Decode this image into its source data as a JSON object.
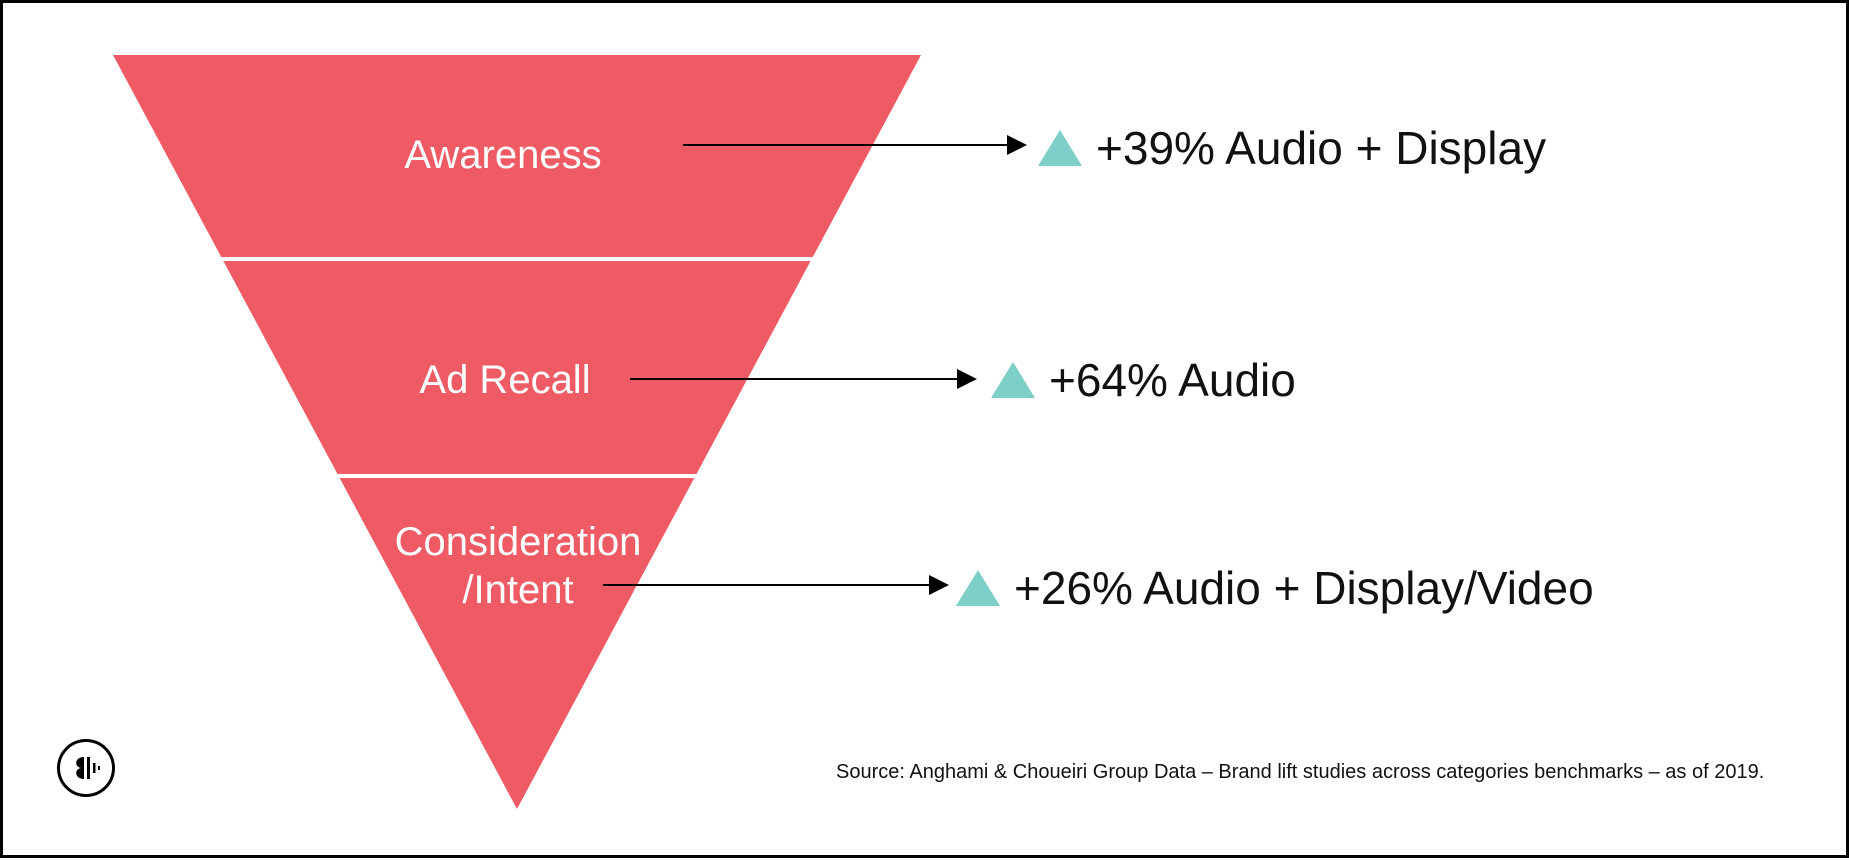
{
  "colors": {
    "funnel_fill": "#ee5b64",
    "divider": "#ffffff",
    "arrow": "#000000",
    "up_triangle": "#7fcfc9",
    "text": "#111111"
  },
  "funnel": {
    "stages": [
      {
        "label_lines": [
          "Awareness"
        ],
        "lift_text": "+39% Audio + Display"
      },
      {
        "label_lines": [
          "Ad Recall"
        ],
        "lift_text": "+64% Audio"
      },
      {
        "label_lines": [
          "Consideration",
          "/Intent"
        ],
        "lift_text": "+26% Audio + Display/Video"
      }
    ]
  },
  "source": "Source: Anghami & Choueiri Group Data – Brand lift studies across categories benchmarks – as of 2019.",
  "logo": {
    "icon": "anghami-logo-icon"
  }
}
